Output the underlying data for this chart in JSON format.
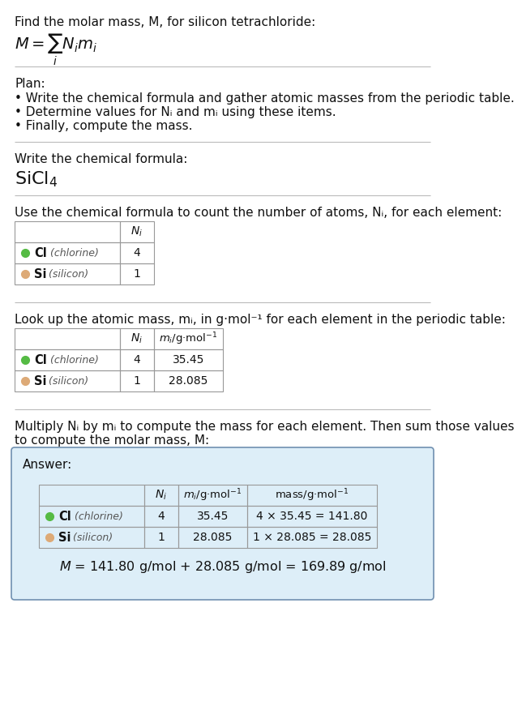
{
  "title_line": "Find the molar mass, M, for silicon tetrachloride:",
  "bg_color": "#ffffff",
  "plan_header": "Plan:",
  "plan_bullets": [
    "• Write the chemical formula and gather atomic masses from the periodic table.",
    "• Determine values for Nᵢ and mᵢ using these items.",
    "• Finally, compute the mass."
  ],
  "formula_section_header": "Write the chemical formula:",
  "count_header": "Use the chemical formula to count the number of atoms, Nᵢ, for each element:",
  "lookup_header": "Look up the atomic mass, mᵢ, in g·mol⁻¹ for each element in the periodic table:",
  "multiply_header_1": "Multiply Nᵢ by mᵢ to compute the mass for each element. Then sum those values",
  "multiply_header_2": "to compute the molar mass, M:",
  "elements": [
    {
      "symbol": "Cl",
      "name": "chlorine",
      "color": "#55bb44",
      "N": 4,
      "m_str": "35.45",
      "mass_str": "4 × 35.45 = 141.80"
    },
    {
      "symbol": "Si",
      "name": "silicon",
      "color": "#ddaa77",
      "N": 1,
      "m_str": "28.085",
      "mass_str": "1 × 28.085 = 28.085"
    }
  ],
  "answer_box_color": "#ddeef8",
  "answer_box_border": "#7090b0",
  "sep_color": "#bbbbbb",
  "text_color": "#111111",
  "text_size": 11.0,
  "small_size": 10.0
}
